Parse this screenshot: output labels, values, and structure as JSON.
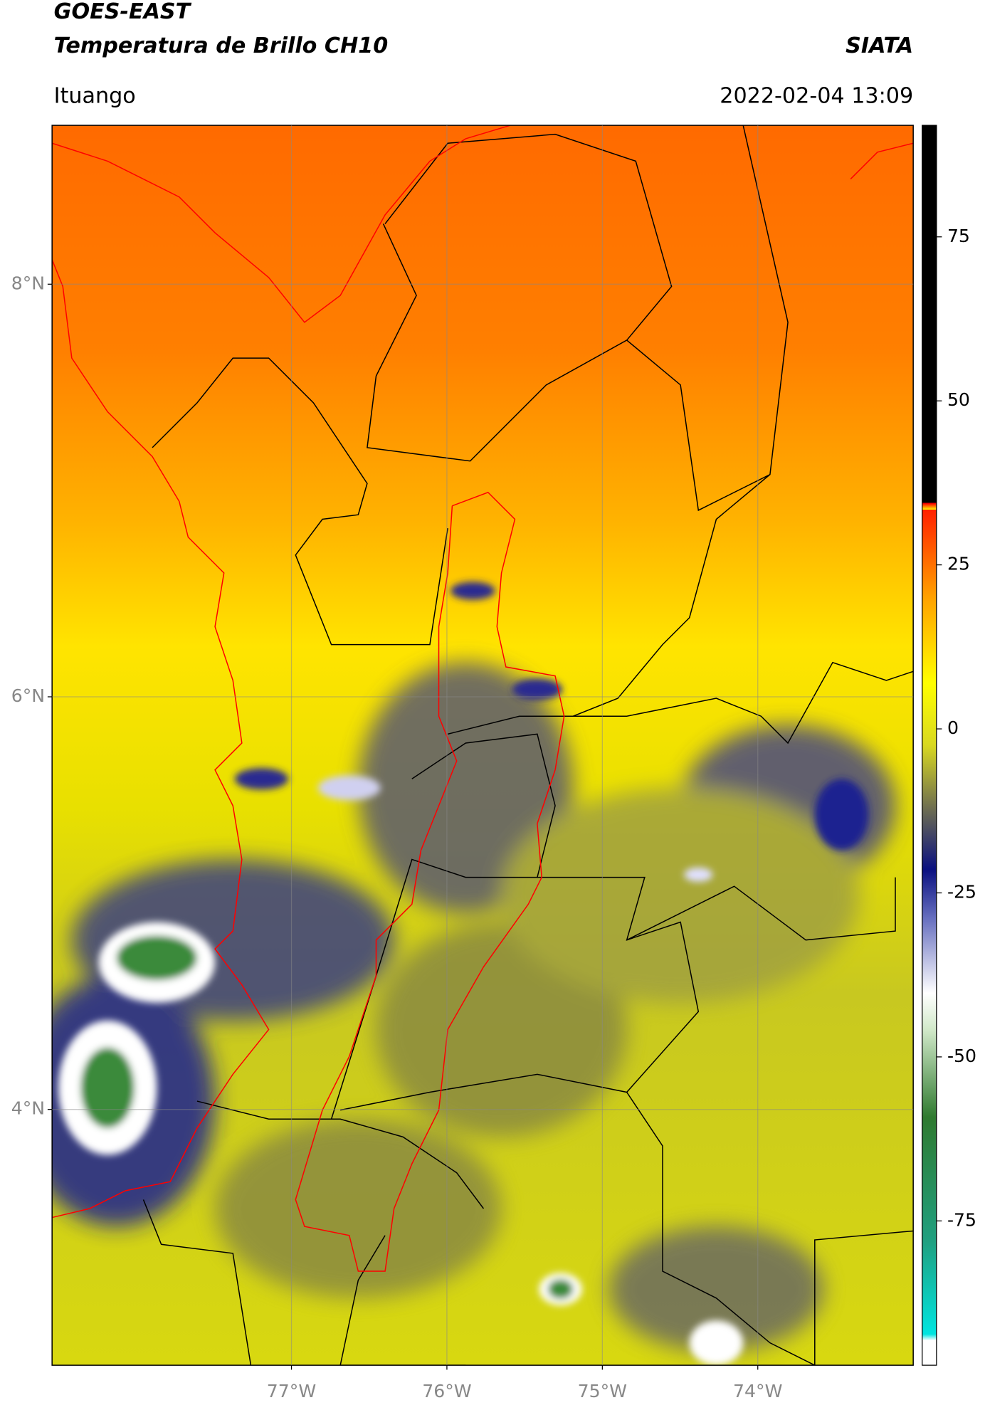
{
  "header": {
    "title": "GOES-EAST",
    "subtitle": "Temperatura de Brillo CH10",
    "source": "SIATA",
    "region": "Ituango",
    "datetime": "2022-02-04 13:09"
  },
  "map": {
    "lat_lim": [
      2.76,
      8.77
    ],
    "lon_lim": [
      -78.54,
      -73.0
    ],
    "lat_ticks": [
      {
        "value": 8,
        "label": "8°N"
      },
      {
        "value": 6,
        "label": "6°N"
      },
      {
        "value": 4,
        "label": "4°N"
      }
    ],
    "lon_ticks": [
      {
        "value": -77,
        "label": "77°W"
      },
      {
        "value": -76,
        "label": "76°W"
      },
      {
        "value": -75,
        "label": "75°W"
      },
      {
        "value": -74,
        "label": "74°W"
      }
    ]
  },
  "colorbar": {
    "lim": [
      -97,
      92
    ],
    "ticks": [
      75,
      50,
      25,
      0,
      -25,
      -50,
      -75
    ]
  }
}
